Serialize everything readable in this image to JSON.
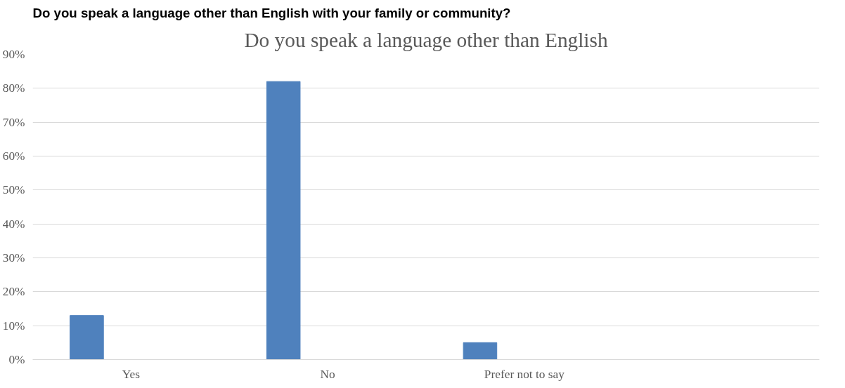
{
  "chart_data": {
    "type": "bar",
    "title": "Do you speak a language other than English with your family or community?",
    "subtitle": "Do you speak a language other than English",
    "categories": [
      "Yes",
      "No",
      "Prefer not to say",
      null
    ],
    "values": [
      13,
      82,
      5,
      null
    ],
    "color": "#4f81bd",
    "ylim": [
      0,
      90
    ],
    "yticks": [
      {
        "value": 0,
        "label": "0%"
      },
      {
        "value": 10,
        "label": "10%"
      },
      {
        "value": 20,
        "label": "20%"
      },
      {
        "value": 30,
        "label": "30%"
      },
      {
        "value": 40,
        "label": "40%"
      },
      {
        "value": 50,
        "label": "50%"
      },
      {
        "value": 60,
        "label": "60%"
      },
      {
        "value": 70,
        "label": "70%"
      },
      {
        "value": 80,
        "label": "80%"
      },
      {
        "value": 90,
        "label": "90%"
      }
    ],
    "grid": "y"
  }
}
